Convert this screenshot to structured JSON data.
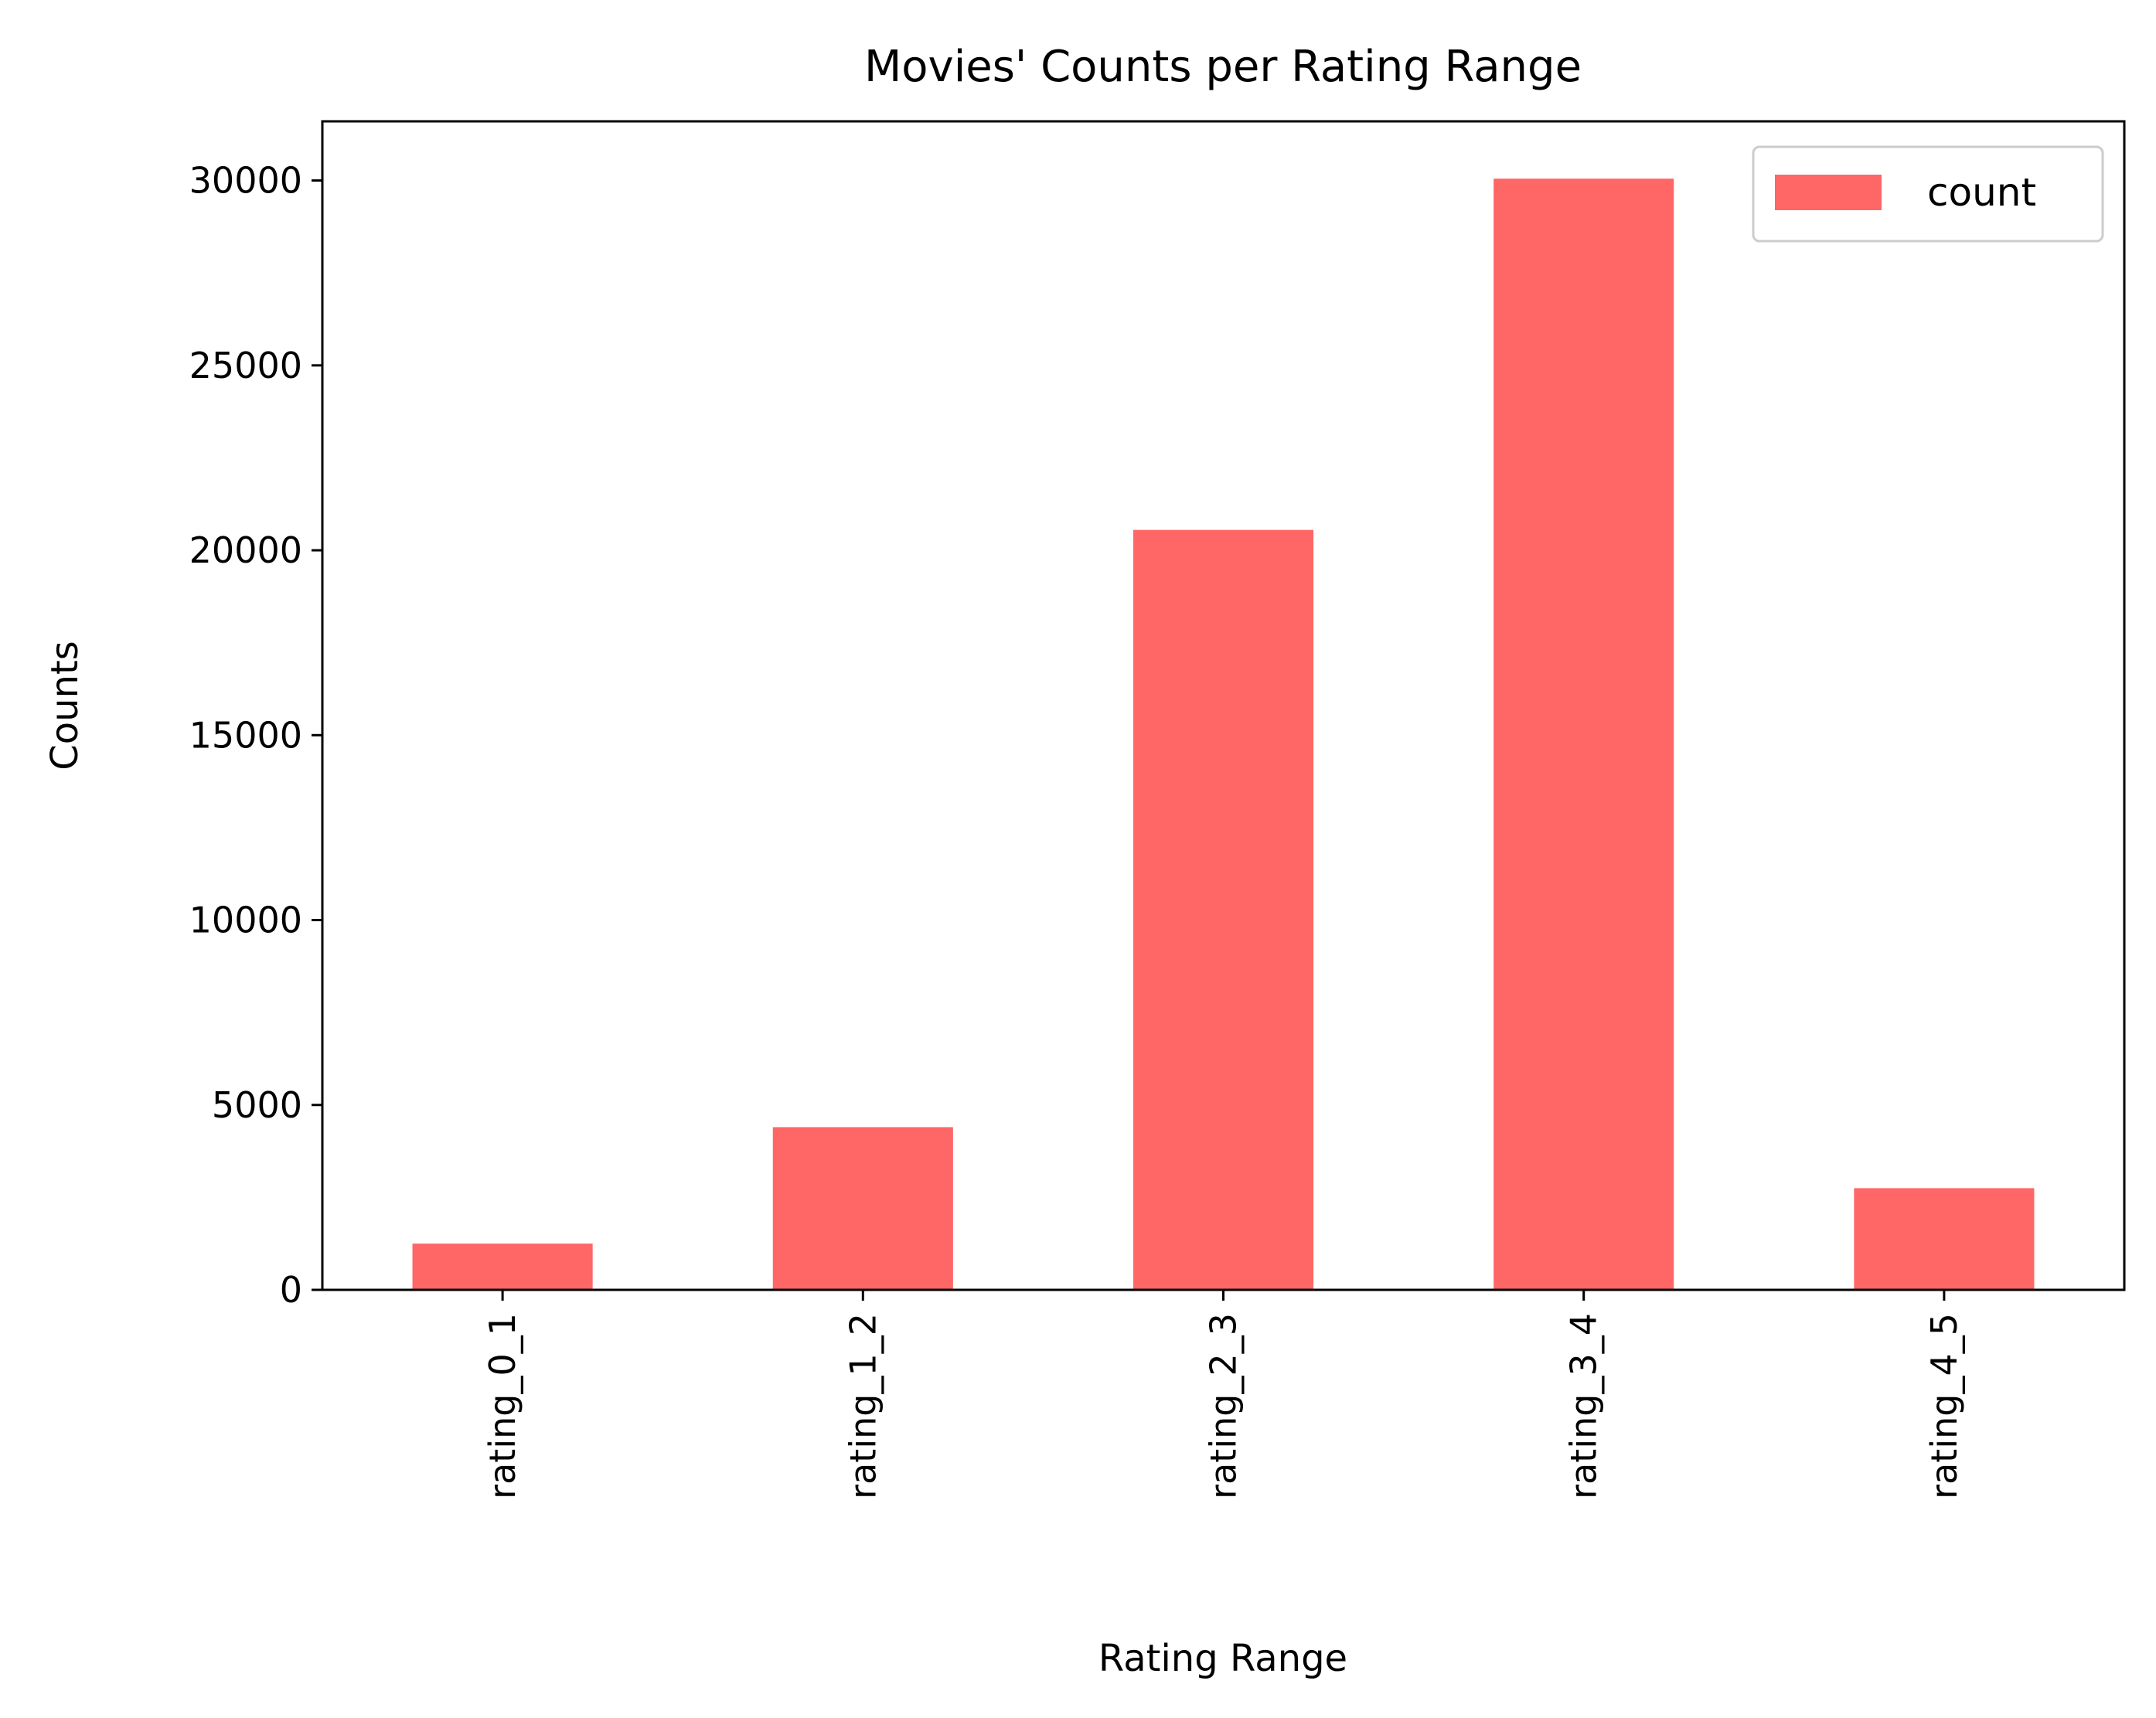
{
  "chart_data": {
    "type": "bar",
    "title": "Movies' Counts per Rating Range",
    "xlabel": "Rating Range",
    "ylabel": "Counts",
    "categories": [
      "rating_0_1",
      "rating_1_2",
      "rating_2_3",
      "rating_3_4",
      "rating_4_5"
    ],
    "series": [
      {
        "name": "count",
        "values": [
          1250,
          4400,
          20550,
          30050,
          2750
        ],
        "color": "#ff6666"
      }
    ],
    "ylim": [
      0,
      31600
    ],
    "yticks": [
      0,
      5000,
      10000,
      15000,
      20000,
      25000,
      30000
    ],
    "grid": false,
    "legend": "top-right"
  }
}
